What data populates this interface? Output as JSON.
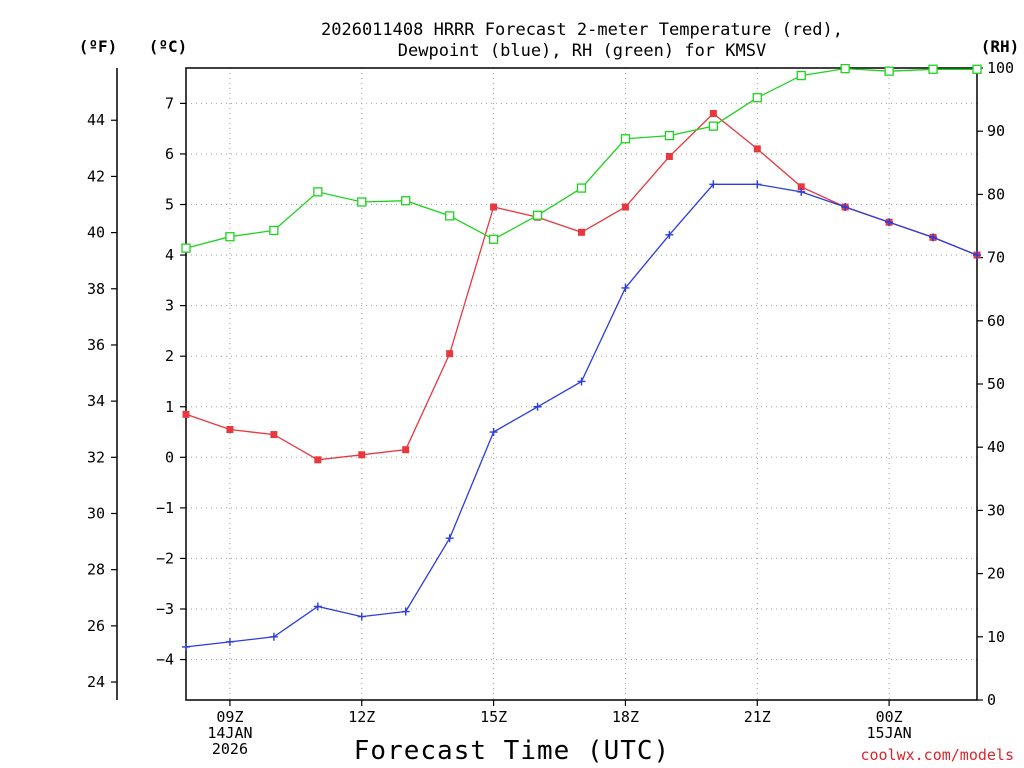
{
  "chart_data": {
    "type": "line",
    "title_line1": "2026011408 HRRR Forecast 2-meter Temperature (red),",
    "title_line2": "Dewpoint (blue), RH (green) for KMSV",
    "xlabel": "Forecast Time (UTC)",
    "units": {
      "fahrenheit": "(ºF)",
      "celsius": "(ºC)",
      "rh": "(RH)"
    },
    "x_hours": [
      8,
      9,
      10,
      11,
      12,
      13,
      14,
      15,
      16,
      17,
      18,
      19,
      20,
      21,
      22,
      23,
      24,
      25,
      26
    ],
    "x_ticks": [
      {
        "hour": 9,
        "lines": [
          "09Z",
          "14JAN",
          "2026"
        ]
      },
      {
        "hour": 12,
        "lines": [
          "12Z"
        ]
      },
      {
        "hour": 15,
        "lines": [
          "15Z"
        ]
      },
      {
        "hour": 18,
        "lines": [
          "18Z"
        ]
      },
      {
        "hour": 21,
        "lines": [
          "21Z"
        ]
      },
      {
        "hour": 24,
        "lines": [
          "00Z",
          "15JAN"
        ]
      }
    ],
    "celsius_axis": {
      "range": [
        -4.8,
        7.7
      ],
      "ticks": [
        "-4",
        "-3",
        "-2",
        "-1",
        "0",
        "1",
        "2",
        "3",
        "4",
        "5",
        "6",
        "7"
      ]
    },
    "fahrenheit_axis": {
      "range": [
        23.36,
        45.86
      ],
      "ticks": [
        "24",
        "26",
        "28",
        "30",
        "32",
        "34",
        "36",
        "38",
        "40",
        "42",
        "44"
      ]
    },
    "rh_axis": {
      "range": [
        0,
        100
      ],
      "ticks": [
        "0",
        "10",
        "20",
        "30",
        "40",
        "50",
        "60",
        "70",
        "80",
        "90",
        "100"
      ]
    },
    "series": [
      {
        "name": "Temperature",
        "units": "C",
        "color": "#e8383d",
        "marker": "filled-square",
        "values": [
          0.85,
          0.55,
          0.45,
          -0.05,
          0.05,
          0.15,
          2.05,
          4.95,
          4.75,
          4.45,
          4.95,
          5.95,
          6.8,
          6.1,
          5.35,
          4.95,
          4.65,
          4.35,
          4.0
        ]
      },
      {
        "name": "Dewpoint",
        "units": "C",
        "color": "#2a3ce0",
        "marker": "plus",
        "values": [
          -3.75,
          -3.65,
          -3.55,
          -2.95,
          -3.15,
          -3.05,
          -1.6,
          0.5,
          1.0,
          1.5,
          3.35,
          4.4,
          5.4,
          5.4,
          5.25,
          4.95,
          4.65,
          4.35,
          4.0
        ]
      },
      {
        "name": "Relative Humidity",
        "units": "%",
        "color": "#1fd21f",
        "marker": "open-square",
        "values": [
          71.5,
          73.3,
          74.3,
          80.4,
          78.8,
          79.0,
          76.6,
          72.9,
          76.7,
          81.0,
          88.8,
          89.3,
          90.8,
          95.3,
          98.8,
          99.9,
          99.5,
          99.8,
          99.8
        ]
      }
    ]
  },
  "watermark": "coolwx.com/models"
}
